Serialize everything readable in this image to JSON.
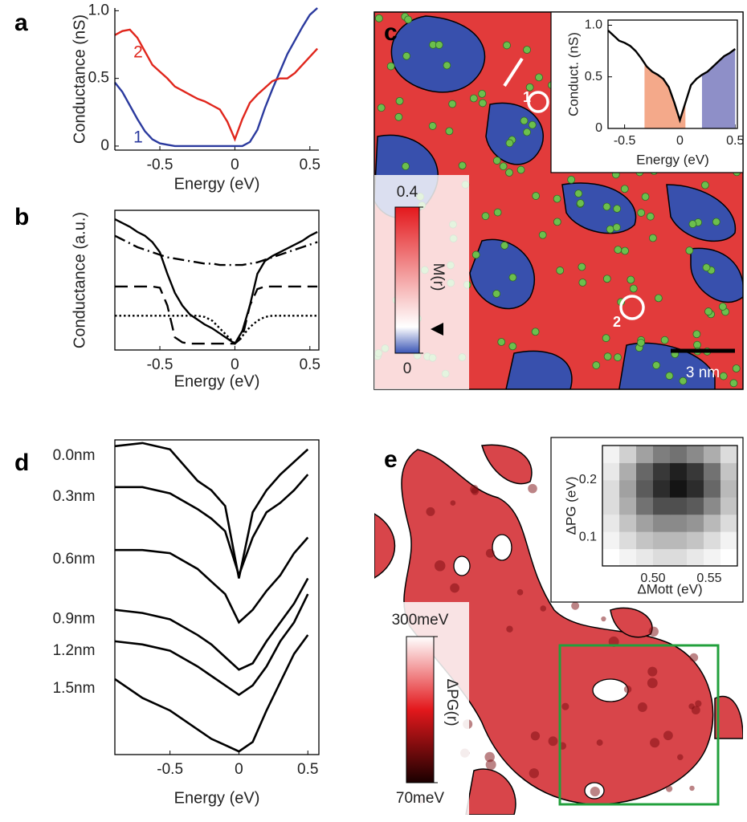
{
  "panel_labels": [
    "a",
    "b",
    "c",
    "d",
    "e"
  ],
  "chart_data": [
    {
      "type": "line",
      "xlabel": "Energy (eV)",
      "ylabel": "Conductance (nS)",
      "x": [
        -0.8,
        -0.75,
        -0.7,
        -0.65,
        -0.6,
        -0.55,
        -0.5,
        -0.45,
        -0.4,
        -0.35,
        -0.3,
        -0.25,
        -0.2,
        -0.15,
        -0.1,
        -0.05,
        0,
        0.05,
        0.1,
        0.15,
        0.2,
        0.25,
        0.3,
        0.35,
        0.4,
        0.45,
        0.5,
        0.55
      ],
      "xlim": [
        -0.8,
        0.56
      ],
      "ylim": [
        -0.03,
        1.02
      ],
      "xticks": [
        -0.5,
        0,
        0.5
      ],
      "yticks": [
        0,
        0.5,
        {
          "value": 1,
          "label": "1.0"
        }
      ],
      "series": [
        {
          "name": "1",
          "color": "#2b3a9e",
          "values": [
            0.47,
            0.4,
            0.3,
            0.2,
            0.11,
            0.05,
            0.02,
            0.01,
            0,
            0,
            0,
            0,
            0,
            0,
            0,
            0,
            0,
            0,
            0.03,
            0.12,
            0.28,
            0.42,
            0.55,
            0.68,
            0.78,
            0.88,
            0.97,
            1.02
          ]
        },
        {
          "name": "2",
          "color": "#e0261c",
          "values": [
            0.82,
            0.85,
            0.86,
            0.8,
            0.7,
            0.6,
            0.55,
            0.5,
            0.44,
            0.41,
            0.38,
            0.35,
            0.33,
            0.3,
            0.27,
            0.18,
            0.05,
            0.2,
            0.32,
            0.38,
            0.43,
            0.48,
            0.5,
            0.5,
            0.54,
            0.6,
            0.66,
            0.72
          ]
        }
      ]
    },
    {
      "type": "line",
      "xlabel": "Energy (eV)",
      "ylabel": "Conductance (a.u.)",
      "x": [
        -0.8,
        -0.75,
        -0.7,
        -0.65,
        -0.6,
        -0.55,
        -0.5,
        -0.45,
        -0.4,
        -0.35,
        -0.3,
        -0.25,
        -0.2,
        -0.15,
        -0.1,
        -0.05,
        0,
        0.05,
        0.1,
        0.15,
        0.2,
        0.25,
        0.3,
        0.35,
        0.4,
        0.45,
        0.5,
        0.55
      ],
      "xlim": [
        -0.8,
        0.56
      ],
      "ylim": [
        -0.05,
        1.05
      ],
      "xticks": [
        -0.5,
        0,
        0.5
      ],
      "series": [
        {
          "color": "#000000",
          "dash": "solid",
          "values": [
            0.98,
            0.95,
            0.92,
            0.88,
            0.85,
            0.8,
            0.72,
            0.55,
            0.4,
            0.3,
            0.23,
            0.19,
            0.15,
            0.12,
            0.08,
            0.04,
            0,
            0.1,
            0.3,
            0.55,
            0.65,
            0.69,
            0.72,
            0.75,
            0.78,
            0.81,
            0.85,
            0.88
          ]
        },
        {
          "color": "#000000",
          "dash": "dashdot",
          "values": [
            0.85,
            0.82,
            0.79,
            0.76,
            0.74,
            0.72,
            0.7,
            0.68,
            0.67,
            0.66,
            0.65,
            0.64,
            0.63,
            0.63,
            0.62,
            0.62,
            0.62,
            0.62,
            0.63,
            0.64,
            0.66,
            0.68,
            0.7,
            0.72,
            0.74,
            0.76,
            0.78,
            0.8
          ]
        },
        {
          "color": "#000000",
          "dash": "dashed",
          "values": [
            0.45,
            0.45,
            0.45,
            0.45,
            0.45,
            0.45,
            0.44,
            0.3,
            0.05,
            0.01,
            0,
            0,
            0,
            0,
            0,
            0,
            0,
            0.05,
            0.3,
            0.43,
            0.45,
            0.45,
            0.45,
            0.45,
            0.45,
            0.45,
            0.45,
            0.45
          ]
        },
        {
          "color": "#000000",
          "dash": "dotted",
          "values": [
            0.22,
            0.22,
            0.22,
            0.22,
            0.22,
            0.22,
            0.22,
            0.22,
            0.22,
            0.22,
            0.22,
            0.22,
            0.21,
            0.18,
            0.12,
            0.06,
            0,
            0.06,
            0.13,
            0.18,
            0.21,
            0.22,
            0.22,
            0.22,
            0.22,
            0.22,
            0.22,
            0.22
          ]
        }
      ]
    },
    {
      "type": "line",
      "xlabel": "Energy (eV)",
      "ylabel": "Conduct. (nS)",
      "x": [
        -0.65,
        -0.6,
        -0.55,
        -0.5,
        -0.45,
        -0.4,
        -0.35,
        -0.3,
        -0.25,
        -0.2,
        -0.15,
        -0.1,
        -0.05,
        0,
        0.05,
        0.1,
        0.15,
        0.2,
        0.25,
        0.3,
        0.35,
        0.4,
        0.45,
        0.5
      ],
      "xlim": [
        -0.65,
        0.52
      ],
      "ylim": [
        0,
        1.05
      ],
      "xticks": [
        -0.5,
        0,
        0.5
      ],
      "yticks": [
        0,
        0.5,
        {
          "value": 1,
          "label": "1.0"
        }
      ],
      "spans": [
        {
          "x": [
            -0.32,
            0.05
          ],
          "color": "#f4a98a"
        },
        {
          "x": [
            0.2,
            0.52
          ],
          "color": "#8e8fc8"
        }
      ],
      "series": [
        {
          "color": "#000000",
          "values": [
            0.95,
            0.9,
            0.85,
            0.83,
            0.8,
            0.75,
            0.68,
            0.6,
            0.55,
            0.52,
            0.48,
            0.4,
            0.25,
            0.08,
            0.25,
            0.42,
            0.48,
            0.52,
            0.55,
            0.6,
            0.65,
            0.7,
            0.73,
            0.77
          ]
        }
      ]
    },
    {
      "type": "line",
      "xlabel": "Energy (eV)",
      "x": [
        -0.9,
        -0.7,
        -0.5,
        -0.3,
        -0.2,
        -0.1,
        0,
        0.1,
        0.2,
        0.3,
        0.4,
        0.5
      ],
      "xlim": [
        -0.9,
        0.58
      ],
      "ylim": [
        0,
        10
      ],
      "xticks": [
        -0.5,
        0,
        0.5
      ],
      "series": [
        {
          "name": "0.0nm",
          "color": "#000000",
          "values": [
            9.8,
            9.9,
            9.7,
            8.7,
            8.4,
            7.9,
            5.6,
            7.7,
            8.4,
            8.9,
            9.3,
            9.7
          ]
        },
        {
          "name": "0.3nm",
          "color": "#000000",
          "values": [
            8.5,
            8.5,
            8.3,
            7.8,
            7.5,
            7.1,
            5.7,
            6.9,
            7.7,
            8.0,
            8.4,
            8.9
          ]
        },
        {
          "name": "0.6nm",
          "color": "#000000",
          "values": [
            6.5,
            6.5,
            6.4,
            5.9,
            5.5,
            5.1,
            4.2,
            4.6,
            5.2,
            5.7,
            6.4,
            6.9
          ]
        },
        {
          "name": "0.9nm",
          "color": "#000000",
          "values": [
            4.6,
            4.5,
            4.3,
            3.8,
            3.5,
            3.1,
            2.7,
            2.9,
            3.6,
            4.2,
            4.8,
            5.6
          ]
        },
        {
          "name": "1.2nm",
          "color": "#000000",
          "values": [
            3.6,
            3.5,
            3.3,
            2.8,
            2.5,
            2.2,
            1.9,
            2.2,
            2.8,
            3.6,
            4.2,
            5.1
          ]
        },
        {
          "name": "1.5nm",
          "color": "#000000",
          "values": [
            2.4,
            1.8,
            1.4,
            0.8,
            0.5,
            0.3,
            0.1,
            0.4,
            1.4,
            2.3,
            3.2,
            3.8
          ]
        }
      ]
    },
    {
      "type": "heatmap",
      "xlabel": "ΔMott (eV)",
      "ylabel": "ΔPG (eV)",
      "x": [
        0.4625,
        0.4775,
        0.4925,
        0.5075,
        0.5225,
        0.5375,
        0.5525,
        0.5675
      ],
      "y": [
        0.065,
        0.095,
        0.125,
        0.155,
        0.185,
        0.215,
        0.245
      ],
      "xlim": [
        0.455,
        0.575
      ],
      "ylim": [
        0.05,
        0.26
      ],
      "xticks": [
        {
          "value": 0.5,
          "label": "0.50"
        },
        0.55
      ],
      "yticks": [
        0.1,
        0.2
      ],
      "z": [
        [
          0,
          0.05,
          0.1,
          0.15,
          0.15,
          0.1,
          0.05,
          0
        ],
        [
          0.05,
          0.15,
          0.25,
          0.3,
          0.3,
          0.25,
          0.15,
          0.05
        ],
        [
          0.1,
          0.25,
          0.4,
          0.5,
          0.5,
          0.45,
          0.3,
          0.15
        ],
        [
          0.15,
          0.35,
          0.6,
          0.75,
          0.75,
          0.7,
          0.5,
          0.25
        ],
        [
          0.15,
          0.4,
          0.7,
          0.9,
          1,
          0.9,
          0.65,
          0.3
        ],
        [
          0.1,
          0.35,
          0.65,
          0.85,
          0.95,
          0.85,
          0.6,
          0.25
        ],
        [
          0.05,
          0.2,
          0.4,
          0.55,
          0.6,
          0.5,
          0.35,
          0.15
        ]
      ]
    }
  ],
  "maps": {
    "c": {
      "cbticks": [
        0,
        0.4
      ],
      "colorbar_label": "M(r)",
      "scalebar": "3 nm",
      "markers": [
        "1",
        "2"
      ]
    },
    "e": {
      "cbticks": [
        {
          "value": 70,
          "label": "70meV"
        },
        {
          "value": 300,
          "label": "300meV"
        }
      ],
      "colorbar_label": "ΔPG(r)"
    }
  }
}
